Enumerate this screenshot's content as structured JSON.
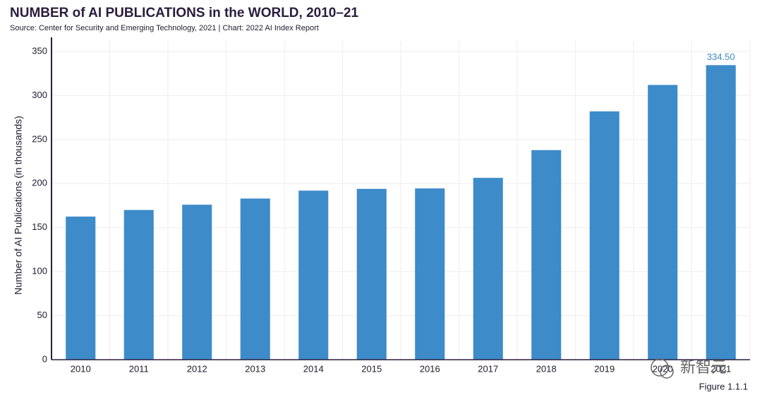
{
  "chart_data": {
    "type": "bar",
    "title": "NUMBER of AI PUBLICATIONS in the WORLD, 2010–21",
    "subtitle": "Source: Center for Security and Emerging Technology, 2021 | Chart: 2022 AI Index Report",
    "y_label": "Number of AI Publications (in thousands)",
    "categories": [
      "2010",
      "2011",
      "2012",
      "2013",
      "2014",
      "2015",
      "2016",
      "2017",
      "2018",
      "2019",
      "2020",
      "2021"
    ],
    "values": [
      162.5,
      170,
      176,
      183,
      192,
      194,
      194.5,
      206.5,
      238,
      282,
      312,
      334.5
    ],
    "value_labels": [
      null,
      null,
      null,
      null,
      null,
      null,
      null,
      null,
      null,
      null,
      null,
      "334.50"
    ],
    "color": "#3d8bc9",
    "ylim": [
      0,
      350
    ],
    "yticks": [
      0,
      50,
      100,
      150,
      200,
      250,
      300,
      350
    ],
    "grid": true,
    "figure_label": "Figure 1.1.1",
    "watermark": "新智元"
  }
}
